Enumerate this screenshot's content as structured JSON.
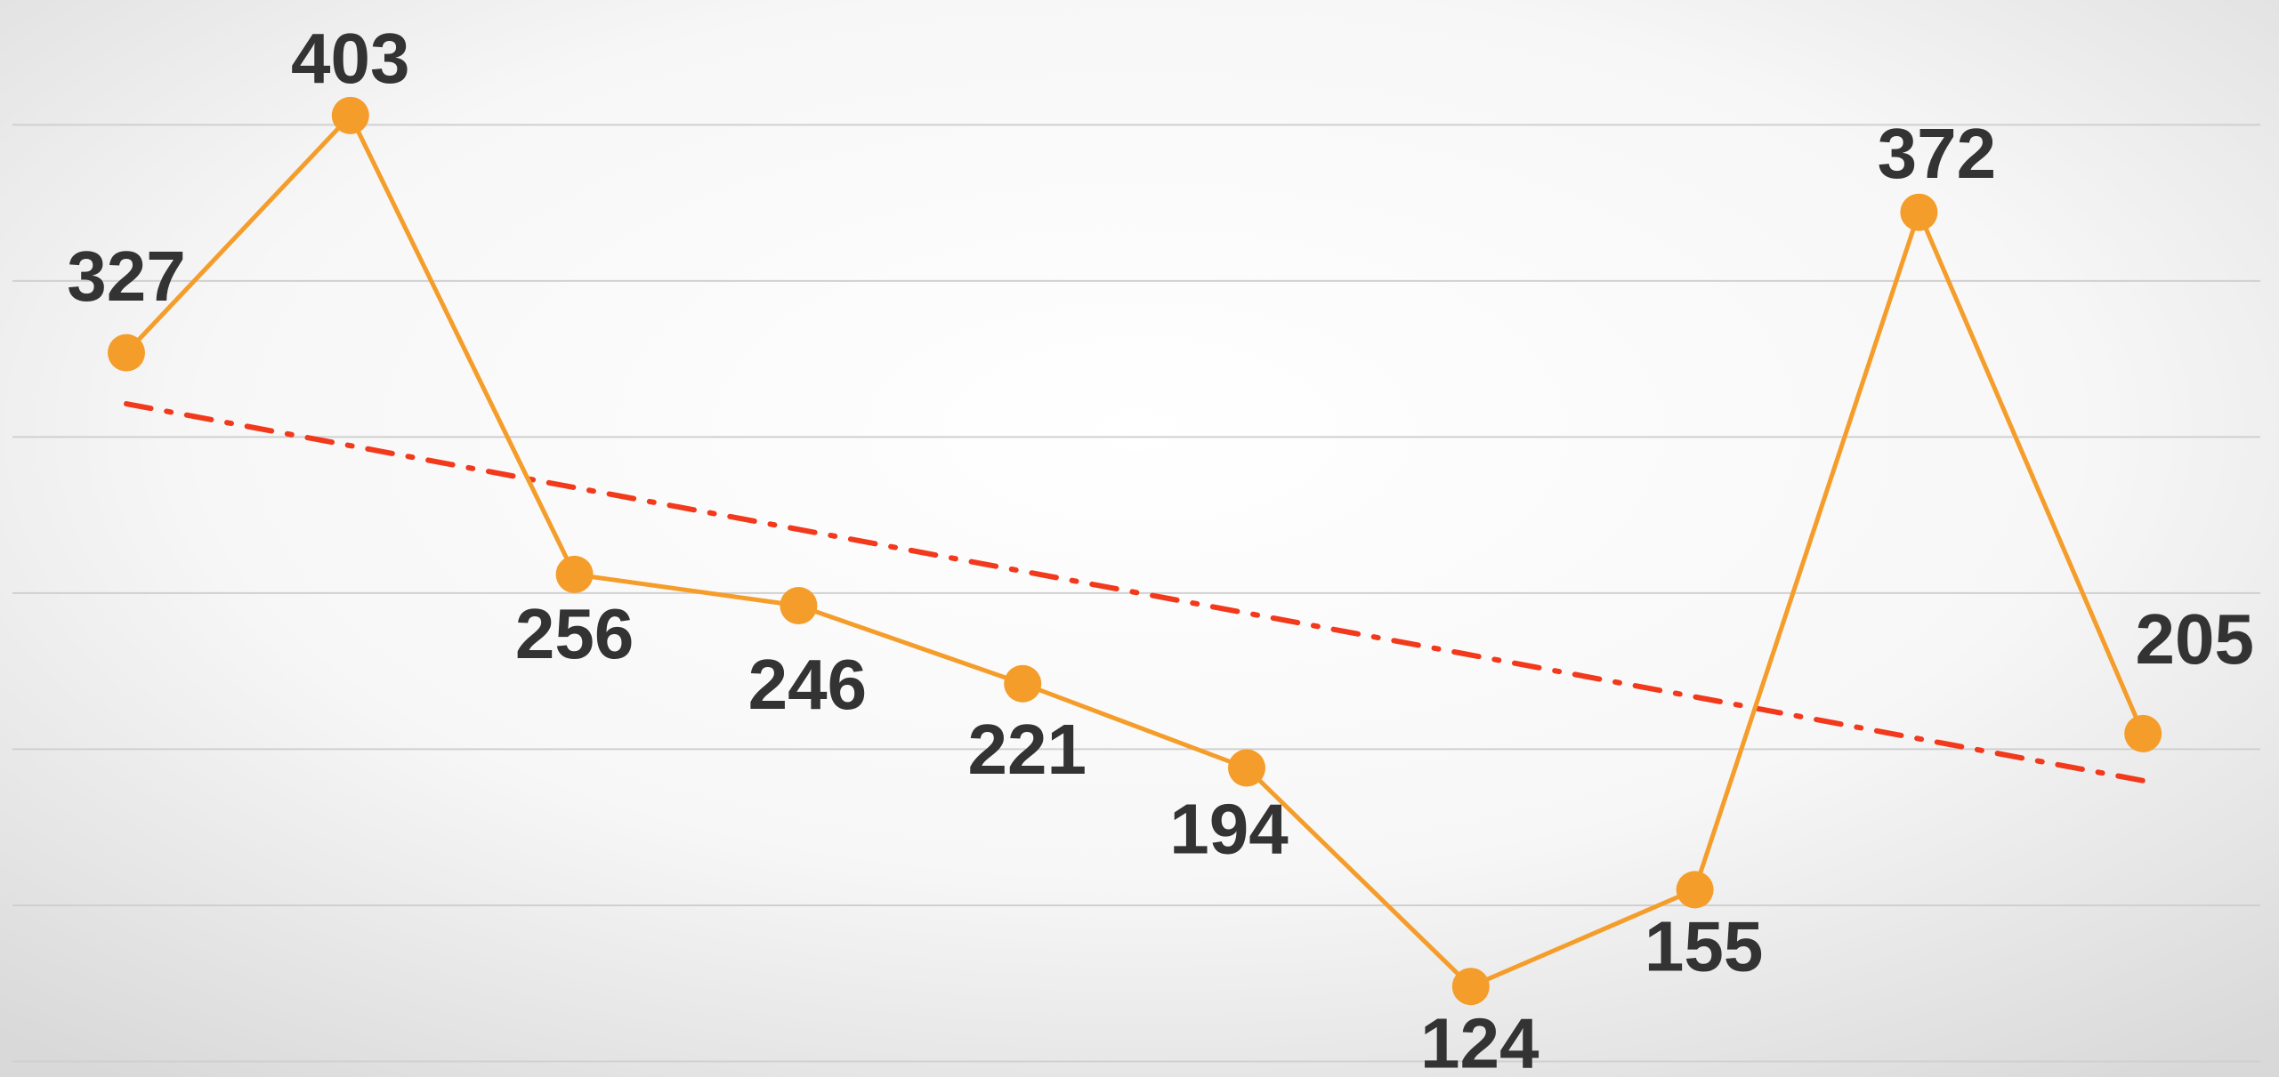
{
  "chart_data": {
    "type": "line",
    "categories": [
      null,
      null,
      null,
      null,
      null,
      null,
      null,
      null,
      null,
      null
    ],
    "series": [
      {
        "color": "#f59d2a",
        "values": [
          327,
          403,
          256,
          246,
          221,
          194,
          124,
          155,
          372,
          205
        ]
      }
    ],
    "trendline": {
      "kind": "linear",
      "color": "#f2391c"
    },
    "ylim": [
      95,
      440
    ],
    "yticks": [
      100,
      150,
      200,
      250,
      300,
      350,
      400
    ],
    "grid": true
  }
}
